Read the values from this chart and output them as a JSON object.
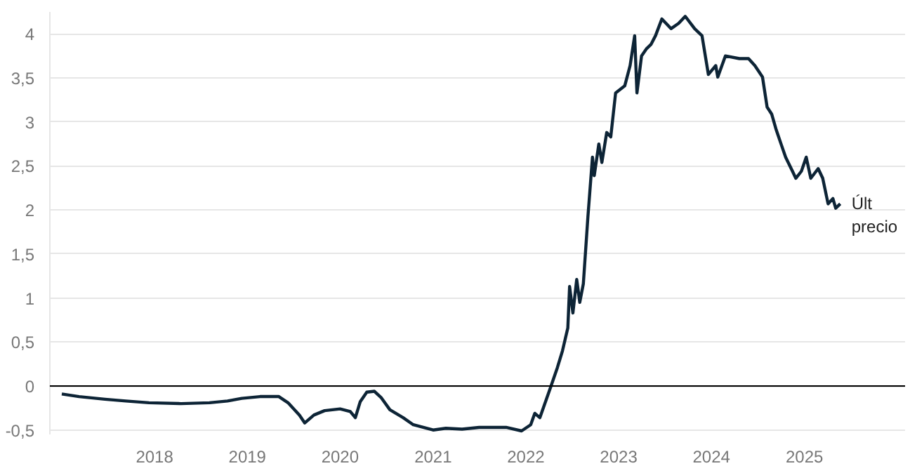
{
  "chart_data": {
    "type": "line",
    "x": [
      "2017-01-01",
      "2017-03-10",
      "2017-06-20",
      "2017-09-10",
      "2017-12-10",
      "2018-04-15",
      "2018-08-05",
      "2018-10-15",
      "2018-12-10",
      "2019-02-20",
      "2019-05-05",
      "2019-06-10",
      "2019-07-25",
      "2019-08-15",
      "2019-09-20",
      "2019-11-01",
      "2020-01-01",
      "2020-02-10",
      "2020-03-01",
      "2020-03-20",
      "2020-04-15",
      "2020-05-15",
      "2020-06-10",
      "2020-07-15",
      "2020-09-05",
      "2020-10-15",
      "2021-01-01",
      "2021-02-20",
      "2021-04-25",
      "2021-07-01",
      "2021-10-15",
      "2021-12-15",
      "2022-01-20",
      "2022-02-05",
      "2022-02-25",
      "2022-04-10",
      "2022-05-05",
      "2022-05-25",
      "2022-06-15",
      "2022-06-22",
      "2022-07-05",
      "2022-07-20",
      "2022-08-01",
      "2022-08-15",
      "2022-09-02",
      "2022-09-20",
      "2022-09-27",
      "2022-10-15",
      "2022-10-27",
      "2022-11-15",
      "2022-12-01",
      "2022-12-20",
      "2023-01-25",
      "2023-02-15",
      "2023-03-05",
      "2023-03-14",
      "2023-04-01",
      "2023-04-20",
      "2023-05-08",
      "2023-05-26",
      "2023-06-20",
      "2023-07-26",
      "2023-08-25",
      "2023-09-20",
      "2023-10-27",
      "2023-11-25",
      "2023-12-20",
      "2024-01-18",
      "2024-01-26",
      "2024-02-25",
      "2024-04-20",
      "2024-05-26",
      "2024-06-20",
      "2024-07-20",
      "2024-08-07",
      "2024-08-25",
      "2024-09-12",
      "2024-10-01",
      "2024-10-19",
      "2024-11-15",
      "2024-11-28",
      "2024-12-20",
      "2025-01-08",
      "2025-01-26",
      "2025-02-24",
      "2025-03-14",
      "2025-04-04",
      "2025-04-23",
      "2025-05-04",
      "2025-05-22"
    ],
    "series": [
      {
        "color": "#0d2436",
        "values": [
          -0.09,
          -0.12,
          -0.15,
          -0.17,
          -0.19,
          -0.2,
          -0.19,
          -0.17,
          -0.14,
          -0.12,
          -0.12,
          -0.19,
          -0.33,
          -0.42,
          -0.33,
          -0.28,
          -0.26,
          -0.29,
          -0.36,
          -0.18,
          -0.07,
          -0.06,
          -0.13,
          -0.27,
          -0.36,
          -0.44,
          -0.5,
          -0.48,
          -0.49,
          -0.47,
          -0.47,
          -0.51,
          -0.44,
          -0.31,
          -0.36,
          0.0,
          0.21,
          0.4,
          0.66,
          1.13,
          0.83,
          1.21,
          0.95,
          1.16,
          1.92,
          2.6,
          2.39,
          2.75,
          2.54,
          2.88,
          2.83,
          3.33,
          3.41,
          3.64,
          3.98,
          3.33,
          3.75,
          3.83,
          3.88,
          3.98,
          4.17,
          4.06,
          4.12,
          4.2,
          4.06,
          3.98,
          3.54,
          3.64,
          3.51,
          3.75,
          3.72,
          3.72,
          3.64,
          3.51,
          3.17,
          3.09,
          2.91,
          2.75,
          2.6,
          2.44,
          2.36,
          2.44,
          2.6,
          2.36,
          2.47,
          2.36,
          2.07,
          2.13,
          2.02,
          2.07
        ]
      }
    ],
    "xlim": [
      "2016-11-15",
      "2026-02-01"
    ],
    "xticks": [
      "2018",
      "2019",
      "2020",
      "2021",
      "2022",
      "2023",
      "2024",
      "2025"
    ],
    "ylim": [
      -0.55,
      4.25
    ],
    "yticks": [
      {
        "value": -0.5,
        "label": "-0,5"
      },
      0,
      {
        "value": 0.5,
        "label": "0,5"
      },
      1,
      {
        "value": 1.5,
        "label": "1,5"
      },
      2,
      {
        "value": 2.5,
        "label": "2,5"
      },
      3,
      {
        "value": 3.5,
        "label": "3,5"
      },
      4
    ],
    "ref_lines": [
      {
        "axis": "y",
        "value": 0,
        "color": "#000000"
      }
    ],
    "annotations": [
      {
        "text": "Últ precio",
        "x": "2025-05-22",
        "y": 2.07
      }
    ],
    "grid": "y",
    "line_style": "solid",
    "marker": "none"
  }
}
